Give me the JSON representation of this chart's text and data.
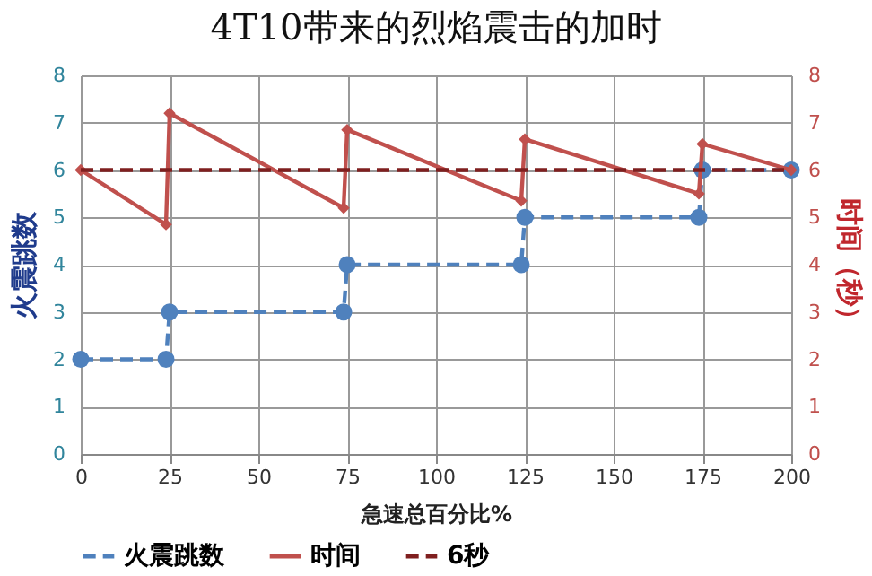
{
  "chart_data": {
    "type": "line",
    "title": "4T10带来的烈焰震击的加时",
    "xlabel": "急速总百分比%",
    "ylabel": "火震跳数",
    "y2label": "时间（秒）",
    "xlim": [
      0,
      200
    ],
    "xticks": [
      0,
      25,
      50,
      75,
      100,
      125,
      150,
      175,
      200
    ],
    "ylim": [
      0,
      8
    ],
    "yticks": [
      0,
      1,
      2,
      3,
      4,
      5,
      6,
      7,
      8
    ],
    "y2lim": [
      0,
      8
    ],
    "y2ticks": [
      0,
      1,
      2,
      3,
      4,
      5,
      6,
      7,
      8
    ],
    "grid": true,
    "legend": "bottom",
    "series": [
      {
        "name": "火震跳数",
        "color": "#4f81bd",
        "marker": "circle",
        "line_style": "dashed",
        "x": [
          0,
          24,
          25,
          74,
          75,
          124,
          125,
          174,
          175,
          200
        ],
        "values": [
          2,
          2,
          3,
          3,
          4,
          4,
          5,
          5,
          6,
          6
        ]
      },
      {
        "name": "时间",
        "color": "#c0504d",
        "marker": "diamond",
        "line_style": "solid",
        "axis": "y2",
        "x": [
          0,
          24,
          25,
          74,
          75,
          124,
          125,
          174,
          175,
          200
        ],
        "values": [
          6,
          4.85,
          7.2,
          5.2,
          6.85,
          5.35,
          6.65,
          5.5,
          6.55,
          6
        ]
      },
      {
        "name": "6秒",
        "color": "#7f1f1f",
        "marker": "none",
        "line_style": "dashed",
        "axis": "y2",
        "x": [
          0,
          200
        ],
        "values": [
          6,
          6
        ]
      }
    ]
  }
}
